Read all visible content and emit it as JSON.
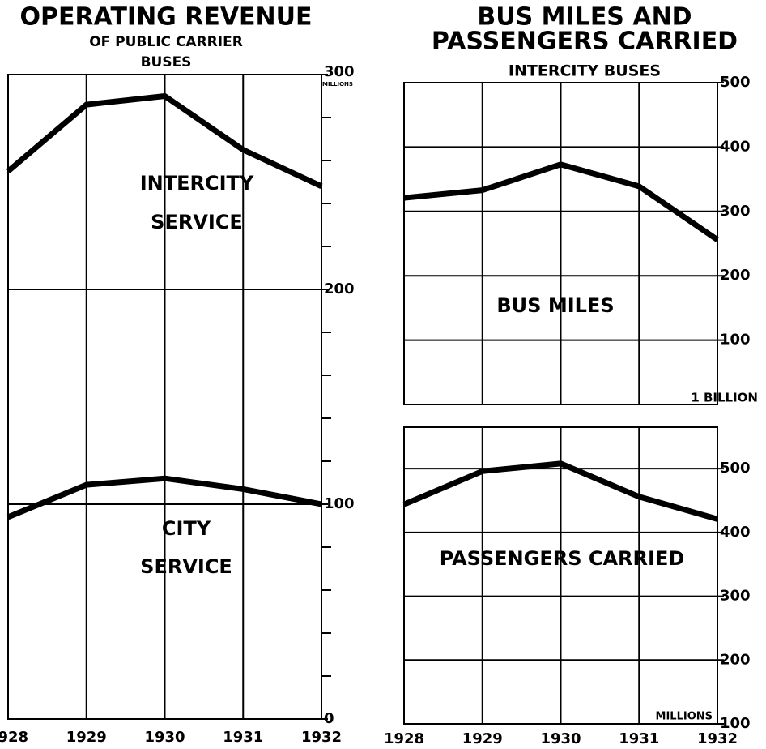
{
  "chart_data": [
    {
      "type": "line",
      "title_lines": [
        "OPERATING REVENUE"
      ],
      "subtitle_lines": [
        "OF PUBLIC CARRIER",
        "BUSES"
      ],
      "y_unit_label": "MILLIONS",
      "categories": [
        "1928",
        "1929",
        "1930",
        "1931",
        "1932"
      ],
      "series": [
        {
          "label_lines": [
            "INTERCITY",
            "SERVICE"
          ],
          "color": "#000000",
          "values": [
            255,
            286,
            290,
            265,
            248
          ]
        },
        {
          "label_lines": [
            "CITY",
            "SERVICE"
          ],
          "color": "#000000",
          "values": [
            94,
            109,
            112,
            107,
            100
          ]
        }
      ],
      "ylim": [
        0,
        300
      ],
      "yticks": [
        0,
        100,
        200,
        300
      ],
      "minor_yticks": [
        20,
        40,
        60,
        80,
        120,
        140,
        160,
        180,
        220,
        240,
        260,
        280
      ],
      "grid": true
    },
    {
      "type": "line",
      "title_lines": [
        "BUS MILES AND",
        "PASSENGERS CARRIED"
      ],
      "subtitle_lines": [
        "INTERCITY BUSES"
      ],
      "y_unit_label": "1 BILLION",
      "series": [
        {
          "label_lines": [
            "BUS MILES"
          ],
          "color": "#000000",
          "values": [
            321,
            333,
            373,
            339,
            256
          ]
        }
      ],
      "ylim": [
        0,
        500
      ],
      "yticks": [
        100,
        200,
        300,
        400,
        500
      ],
      "grid": true
    },
    {
      "type": "line",
      "y_unit_label": "MILLIONS",
      "categories": [
        "1928",
        "1929",
        "1930",
        "1931",
        "1932"
      ],
      "series": [
        {
          "label_lines": [
            "PASSENGERS CARRIED"
          ],
          "color": "#000000",
          "values": [
            444,
            496,
            508,
            456,
            421
          ]
        }
      ],
      "ylim": [
        100,
        565
      ],
      "yticks": [
        100,
        200,
        300,
        400,
        500
      ],
      "grid": true
    }
  ]
}
